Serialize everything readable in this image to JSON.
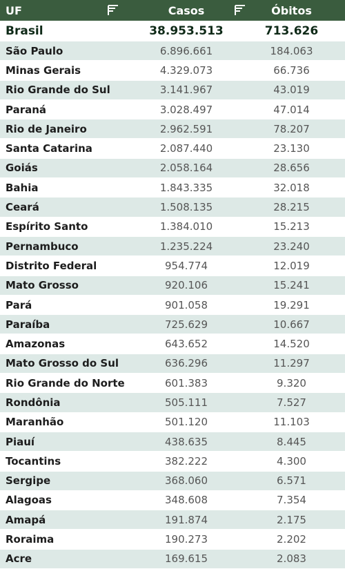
{
  "header": {
    "uf": "UF",
    "casos": "Casos",
    "obitos": "Óbitos",
    "sort_icon": "sort-icon"
  },
  "total": {
    "uf": "Brasil",
    "casos": "38.953.513",
    "obitos": "713.626"
  },
  "rows": [
    {
      "uf": "São Paulo",
      "casos": "6.896.661",
      "obitos": "184.063"
    },
    {
      "uf": "Minas Gerais",
      "casos": "4.329.073",
      "obitos": "66.736"
    },
    {
      "uf": "Rio Grande do Sul",
      "casos": "3.141.967",
      "obitos": "43.019"
    },
    {
      "uf": "Paraná",
      "casos": "3.028.497",
      "obitos": "47.014"
    },
    {
      "uf": "Rio de Janeiro",
      "casos": "2.962.591",
      "obitos": "78.207"
    },
    {
      "uf": "Santa Catarina",
      "casos": "2.087.440",
      "obitos": "23.130"
    },
    {
      "uf": "Goiás",
      "casos": "2.058.164",
      "obitos": "28.656"
    },
    {
      "uf": "Bahia",
      "casos": "1.843.335",
      "obitos": "32.018"
    },
    {
      "uf": "Ceará",
      "casos": "1.508.135",
      "obitos": "28.215"
    },
    {
      "uf": "Espírito Santo",
      "casos": "1.384.010",
      "obitos": "15.213"
    },
    {
      "uf": "Pernambuco",
      "casos": "1.235.224",
      "obitos": "23.240"
    },
    {
      "uf": "Distrito Federal",
      "casos": "954.774",
      "obitos": "12.019"
    },
    {
      "uf": "Mato Grosso",
      "casos": "920.106",
      "obitos": "15.241"
    },
    {
      "uf": "Pará",
      "casos": "901.058",
      "obitos": "19.291"
    },
    {
      "uf": "Paraíba",
      "casos": "725.629",
      "obitos": "10.667"
    },
    {
      "uf": "Amazonas",
      "casos": "643.652",
      "obitos": "14.520"
    },
    {
      "uf": "Mato Grosso do Sul",
      "casos": "636.296",
      "obitos": "11.297"
    },
    {
      "uf": "Rio Grande do Norte",
      "casos": "601.383",
      "obitos": "9.320"
    },
    {
      "uf": "Rondônia",
      "casos": "505.111",
      "obitos": "7.527"
    },
    {
      "uf": "Maranhão",
      "casos": "501.120",
      "obitos": "11.103"
    },
    {
      "uf": "Piauí",
      "casos": "438.635",
      "obitos": "8.445"
    },
    {
      "uf": "Tocantins",
      "casos": "382.222",
      "obitos": "4.300"
    },
    {
      "uf": "Sergipe",
      "casos": "368.060",
      "obitos": "6.571"
    },
    {
      "uf": "Alagoas",
      "casos": "348.608",
      "obitos": "7.354"
    },
    {
      "uf": "Amapá",
      "casos": "191.874",
      "obitos": "2.175"
    },
    {
      "uf": "Roraima",
      "casos": "190.273",
      "obitos": "2.202"
    },
    {
      "uf": "Acre",
      "casos": "169.615",
      "obitos": "2.083"
    }
  ]
}
